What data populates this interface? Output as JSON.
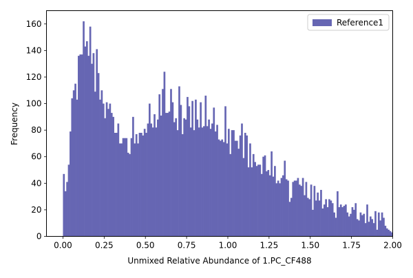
{
  "chart_data": {
    "type": "bar",
    "title": "",
    "xlabel": "Unmixed Relative Abundance of 1.PC_CF488",
    "ylabel": "Frequency",
    "xlim": [
      -0.1,
      2.0
    ],
    "ylim": [
      0,
      170
    ],
    "x_ticks": [
      "0.00",
      "0.25",
      "0.50",
      "0.75",
      "1.00",
      "1.25",
      "1.50",
      "1.75",
      "2.00"
    ],
    "y_ticks": [
      "0",
      "20",
      "40",
      "60",
      "80",
      "100",
      "120",
      "140",
      "160"
    ],
    "bin_start": 0.0,
    "bin_width": 0.01,
    "grid": false,
    "legend_position": "top-right",
    "series": [
      {
        "name": "Reference1",
        "color": "#6666b3",
        "values": [
          47,
          34,
          41,
          54,
          79,
          104,
          110,
          115,
          103,
          136,
          137,
          137,
          162,
          143,
          147,
          136,
          158,
          130,
          138,
          109,
          141,
          123,
          103,
          110,
          100,
          89,
          101,
          96,
          100,
          93,
          90,
          78,
          78,
          85,
          70,
          70,
          74,
          74,
          74,
          63,
          62,
          74,
          90,
          70,
          77,
          70,
          78,
          78,
          76,
          81,
          78,
          85,
          100,
          85,
          82,
          92,
          82,
          88,
          107,
          91,
          111,
          124,
          93,
          93,
          94,
          111,
          101,
          86,
          89,
          80,
          113,
          99,
          77,
          89,
          88,
          105,
          98,
          82,
          102,
          80,
          103,
          88,
          82,
          101,
          82,
          83,
          106,
          83,
          88,
          81,
          85,
          97,
          79,
          84,
          73,
          72,
          73,
          71,
          98,
          70,
          81,
          62,
          80,
          80,
          72,
          72,
          66,
          76,
          85,
          59,
          78,
          76,
          52,
          70,
          52,
          62,
          56,
          53,
          54,
          54,
          47,
          60,
          61,
          49,
          50,
          46,
          64,
          45,
          53,
          40,
          42,
          40,
          44,
          46,
          57,
          43,
          42,
          26,
          29,
          41,
          42,
          42,
          44,
          39,
          38,
          44,
          31,
          41,
          29,
          28,
          39,
          20,
          38,
          27,
          33,
          27,
          35,
          21,
          24,
          28,
          22,
          28,
          27,
          25,
          18,
          14,
          34,
          22,
          24,
          22,
          23,
          24,
          18,
          15,
          17,
          22,
          20,
          25,
          13,
          12,
          18,
          16,
          17,
          10,
          24,
          11,
          15,
          13,
          10,
          19,
          5,
          18,
          12,
          18,
          14,
          8,
          6,
          5,
          4,
          3
        ]
      }
    ]
  }
}
